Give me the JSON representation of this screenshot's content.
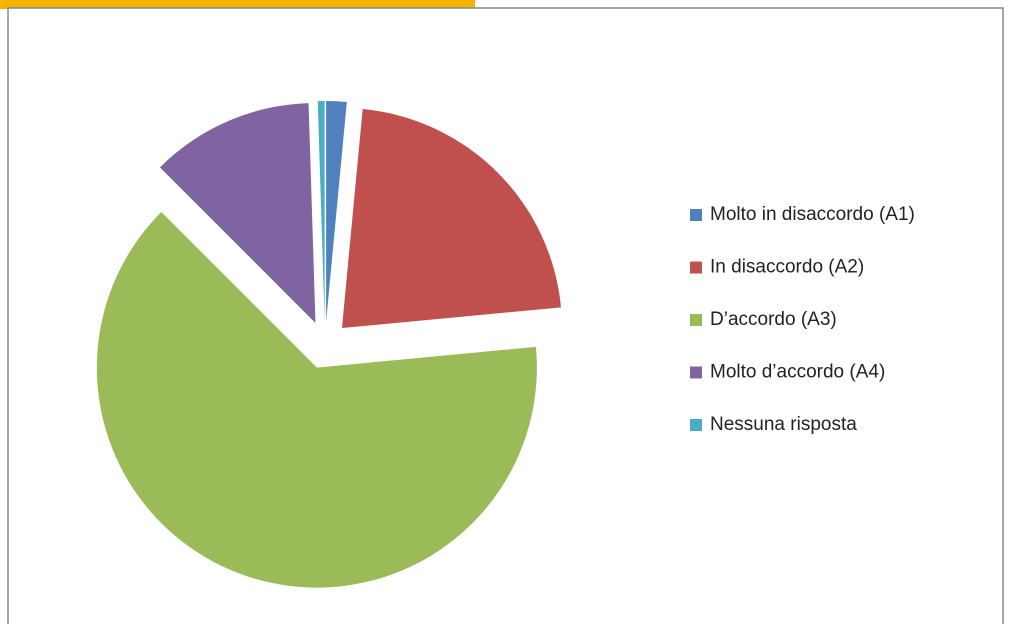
{
  "chart_data": {
    "type": "pie",
    "categories": [
      "Molto in disaccordo (A1)",
      "In disaccordo (A2)",
      "D’accordo (A3)",
      "Molto d’accordo (A4)",
      "Nessuna risposta"
    ],
    "values": [
      1.5,
      22,
      64,
      12,
      0.5
    ],
    "colors": [
      "#4f81bd",
      "#c0504d",
      "#9bbb59",
      "#8064a2",
      "#4bacc6"
    ],
    "exploded": true,
    "legend": "right"
  }
}
